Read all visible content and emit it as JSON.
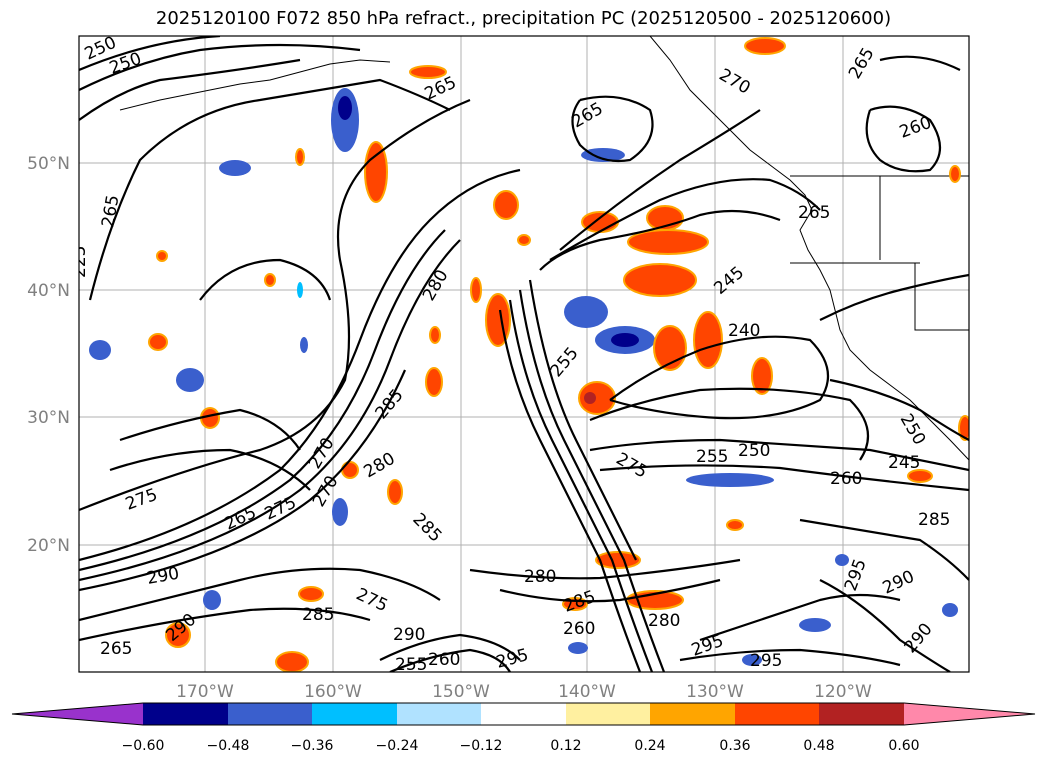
{
  "title": "2025120100 F072 850 hPa refract., precipitation PC (2025120500 - 2025120600)",
  "lat_labels": [
    "50°N",
    "40°N",
    "30°N",
    "20°N"
  ],
  "lon_labels": [
    "170°W",
    "160°W",
    "150°W",
    "140°W",
    "130°W",
    "120°W"
  ],
  "contour_labels": [
    "250",
    "250",
    "265",
    "265",
    "270",
    "265",
    "260",
    "265",
    "265",
    "280",
    "245",
    "240",
    "255",
    "250",
    "255",
    "250",
    "260",
    "245",
    "275",
    "270",
    "285",
    "280",
    "285",
    "275",
    "265",
    "275",
    "290",
    "285",
    "280",
    "275",
    "290",
    "260",
    "295",
    "285",
    "295",
    "290",
    "290",
    "295",
    "270",
    "265",
    "255",
    "260",
    "225",
    "280",
    "290",
    "285",
    "295"
  ],
  "colorbar": {
    "colors": [
      "#9932cc",
      "#00008b",
      "#3a5fcd",
      "#00bfff",
      "#b0e2ff",
      "#ffffff",
      "#fff0a0",
      "#ffa500",
      "#ff4500",
      "#b22222",
      "#ff88aa"
    ],
    "tick_labels": [
      "−0.60",
      "−0.48",
      "−0.36",
      "−0.24",
      "−0.12",
      "0.12",
      "0.24",
      "0.36",
      "0.48",
      "0.60"
    ]
  }
}
